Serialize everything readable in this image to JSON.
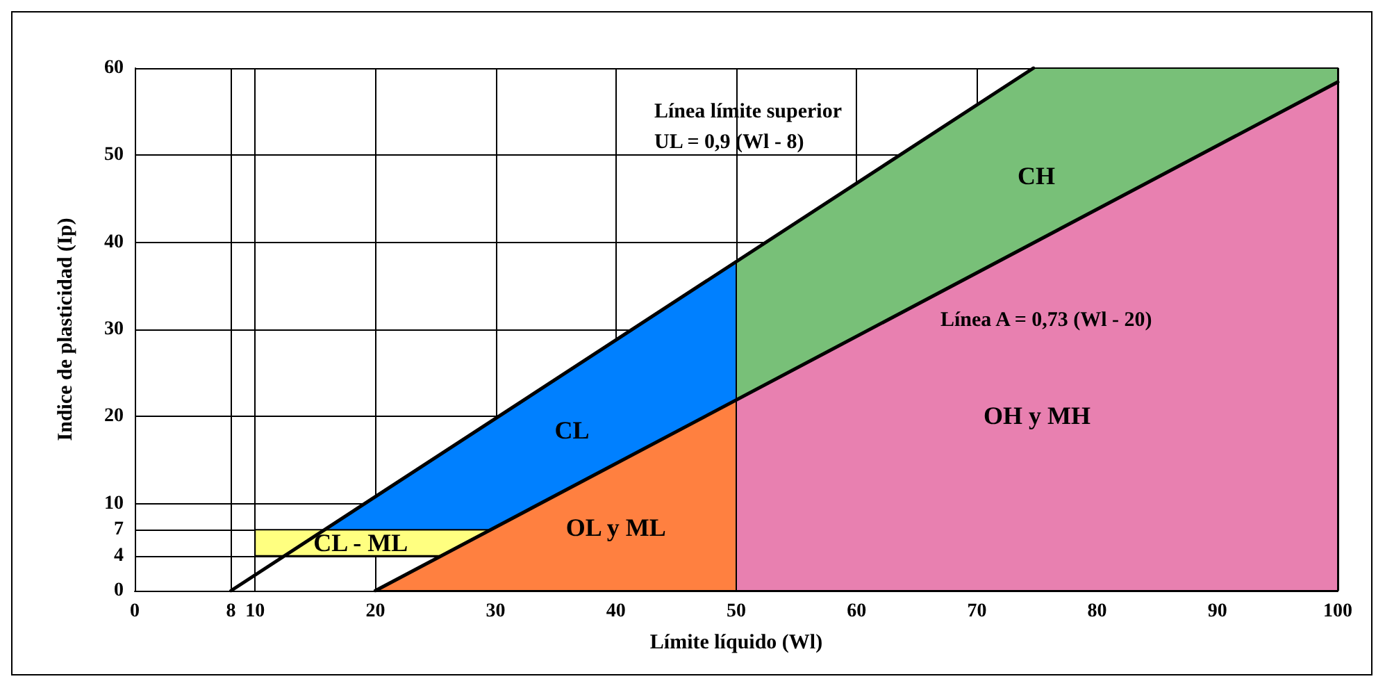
{
  "chart_data": {
    "type": "line",
    "xlabel": "Límite líquido (Wl)",
    "ylabel": "Indice de plasticidad (Ip)",
    "xlim": [
      0,
      100
    ],
    "ylim": [
      0,
      60
    ],
    "xticks": [
      0,
      8,
      10,
      20,
      30,
      40,
      50,
      60,
      70,
      80,
      90,
      100
    ],
    "yticks": [
      0,
      4,
      7,
      10,
      20,
      30,
      40,
      50,
      60
    ],
    "grid": true,
    "line_style": "solid",
    "marker": "none",
    "series": [
      {
        "type": "area",
        "name": "CL - ML",
        "color": "#ffff80",
        "x": [
          10,
          25.5,
          29.6,
          10
        ],
        "values": [
          4,
          4,
          7,
          7
        ]
      },
      {
        "type": "area",
        "name": "CL",
        "color": "#0080ff",
        "x": [
          15.8,
          29.6,
          50,
          50
        ],
        "values": [
          7,
          7,
          21.9,
          37.8
        ]
      },
      {
        "type": "area",
        "name": "CH",
        "color": "#78c078",
        "x": [
          50,
          100,
          100,
          74.7,
          50
        ],
        "values": [
          21.9,
          58.4,
          60,
          60,
          37.8
        ]
      },
      {
        "type": "area",
        "name": "OL y ML",
        "color": "#ff8040",
        "x": [
          20,
          50,
          50
        ],
        "values": [
          0,
          0,
          21.9
        ]
      },
      {
        "type": "area",
        "name": "OH y MH",
        "color": "#e880b0",
        "x": [
          50,
          100,
          100,
          50
        ],
        "values": [
          0,
          0,
          58.4,
          21.9
        ]
      },
      {
        "color": "#000000",
        "x": [
          8,
          74.7
        ],
        "values": [
          0,
          60
        ]
      },
      {
        "color": "#000000",
        "x": [
          20,
          100
        ],
        "values": [
          0,
          58.4
        ]
      }
    ],
    "annotations": [
      "Línea límite superior",
      "UL = 0,9 (Wl - 8)",
      "Línea A = 0,73 (Wl - 20)"
    ]
  }
}
